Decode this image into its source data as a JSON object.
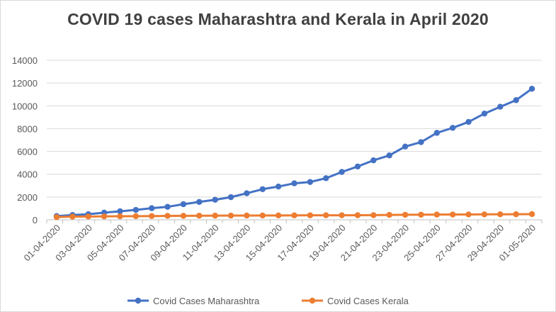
{
  "chart_data": {
    "type": "line",
    "title": "COVID 19 cases Maharashtra and Kerala in April 2020",
    "xlabel": "",
    "ylabel": "",
    "ylim": [
      0,
      14000
    ],
    "yticks": [
      0,
      2000,
      4000,
      6000,
      8000,
      10000,
      12000,
      14000
    ],
    "grid": "horizontal",
    "legend_position": "bottom",
    "x": [
      "01-04-2020",
      "02-04-2020",
      "03-04-2020",
      "04-04-2020",
      "05-04-2020",
      "06-04-2020",
      "07-04-2020",
      "08-04-2020",
      "09-04-2020",
      "10-04-2020",
      "11-04-2020",
      "12-04-2020",
      "13-04-2020",
      "14-04-2020",
      "15-04-2020",
      "16-04-2020",
      "17-04-2020",
      "18-04-2020",
      "19-04-2020",
      "20-04-2020",
      "21-04-2020",
      "22-04-2020",
      "23-04-2020",
      "24-04-2020",
      "25-04-2020",
      "26-04-2020",
      "27-04-2020",
      "28-04-2020",
      "29-04-2020",
      "30-04-2020",
      "01-05-2020"
    ],
    "xtick_labels": [
      "01-04-2020",
      "03-04-2020",
      "05-04-2020",
      "07-04-2020",
      "09-04-2020",
      "11-04-2020",
      "13-04-2020",
      "15-04-2020",
      "17-04-2020",
      "19-04-2020",
      "21-04-2020",
      "23-04-2020",
      "25-04-2020",
      "27-04-2020",
      "29-04-2020",
      "01-05-2020"
    ],
    "series": [
      {
        "name": "Covid Cases Maharashtra",
        "color": "#4472c4",
        "values": [
          330,
          420,
          490,
          630,
          750,
          870,
          1020,
          1140,
          1370,
          1570,
          1760,
          1990,
          2330,
          2690,
          2920,
          3200,
          3320,
          3650,
          4200,
          4680,
          5220,
          5650,
          6430,
          6820,
          7630,
          8070,
          8590,
          9320,
          9920,
          10500,
          11500
        ]
      },
      {
        "name": "Covid Cases Kerala",
        "color": "#ed7d31",
        "values": [
          240,
          280,
          290,
          300,
          310,
          320,
          330,
          345,
          350,
          360,
          365,
          370,
          375,
          380,
          385,
          390,
          395,
          400,
          400,
          405,
          410,
          430,
          440,
          450,
          460,
          465,
          470,
          480,
          485,
          490,
          500
        ]
      }
    ]
  }
}
